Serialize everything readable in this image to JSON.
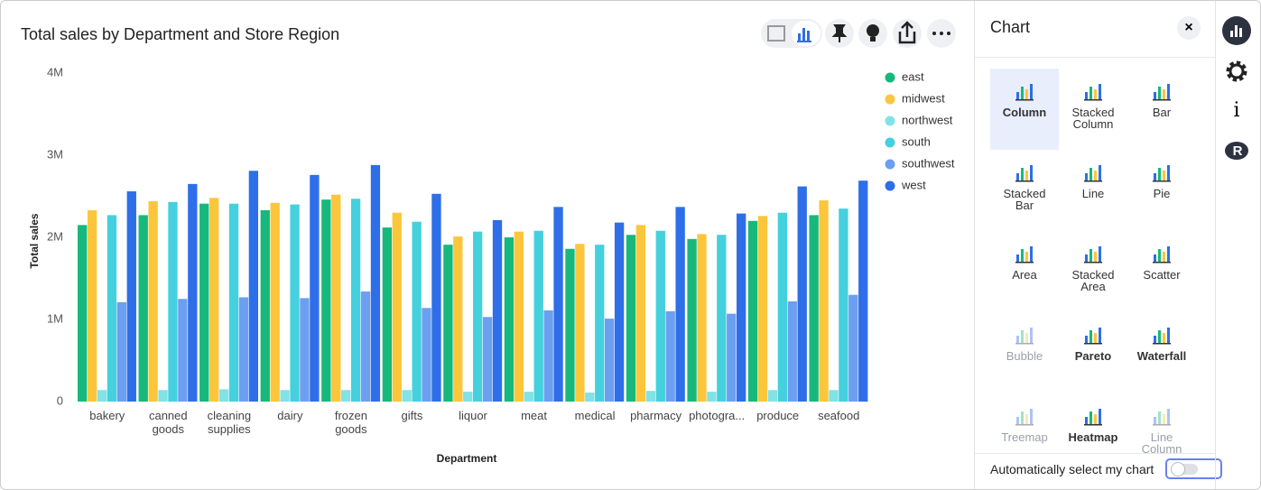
{
  "chart_data": {
    "type": "bar",
    "title": "Total sales by Department and Store Region",
    "x_label": "Department",
    "y_label": "Total sales",
    "categories": [
      "bakery",
      "canned goods",
      "cleaning supplies",
      "dairy",
      "frozen goods",
      "gifts",
      "liquor",
      "meat",
      "medical",
      "pharmacy",
      "photogra...",
      "produce",
      "seafood"
    ],
    "series": [
      {
        "name": "east",
        "color": "#17b87c",
        "values": [
          2150000,
          2270000,
          2410000,
          2330000,
          2460000,
          2120000,
          1910000,
          2000000,
          1860000,
          2030000,
          1980000,
          2200000,
          2270000
        ]
      },
      {
        "name": "midwest",
        "color": "#fcc63c",
        "values": [
          2330000,
          2440000,
          2480000,
          2420000,
          2520000,
          2300000,
          2010000,
          2070000,
          1920000,
          2150000,
          2040000,
          2260000,
          2450000
        ]
      },
      {
        "name": "northwest",
        "color": "#82e2e6",
        "values": [
          140000,
          140000,
          150000,
          140000,
          140000,
          140000,
          120000,
          120000,
          110000,
          130000,
          120000,
          140000,
          140000
        ]
      },
      {
        "name": "south",
        "color": "#45d0dd",
        "values": [
          2270000,
          2430000,
          2410000,
          2400000,
          2470000,
          2190000,
          2070000,
          2080000,
          1910000,
          2080000,
          2030000,
          2300000,
          2350000
        ]
      },
      {
        "name": "southwest",
        "color": "#6d9ff1",
        "values": [
          1210000,
          1250000,
          1270000,
          1260000,
          1340000,
          1140000,
          1030000,
          1110000,
          1010000,
          1100000,
          1070000,
          1220000,
          1300000
        ]
      },
      {
        "name": "west",
        "color": "#2e6ee8",
        "values": [
          2560000,
          2650000,
          2810000,
          2760000,
          2880000,
          2530000,
          2210000,
          2370000,
          2180000,
          2370000,
          2290000,
          2620000,
          2690000
        ]
      }
    ],
    "ylim": [
      0,
      4000000
    ],
    "yticks": [
      {
        "value": 0,
        "label": "0"
      },
      {
        "value": 1000000,
        "label": "1M"
      },
      {
        "value": 2000000,
        "label": "2M"
      },
      {
        "value": 3000000,
        "label": "3M"
      },
      {
        "value": 4000000,
        "label": "4M"
      }
    ],
    "grid": false,
    "legend": "right"
  },
  "panel": {
    "title": "Chart",
    "chart_types": [
      {
        "label": "Column",
        "state": "selected"
      },
      {
        "label": "Stacked Column",
        "state": "available"
      },
      {
        "label": "Bar",
        "state": "available"
      },
      {
        "label": "Stacked Bar",
        "state": "available"
      },
      {
        "label": "Line",
        "state": "available"
      },
      {
        "label": "Pie",
        "state": "available"
      },
      {
        "label": "Area",
        "state": "available"
      },
      {
        "label": "Stacked Area",
        "state": "available"
      },
      {
        "label": "Scatter",
        "state": "available"
      },
      {
        "label": "Bubble",
        "state": "disabled"
      },
      {
        "label": "Pareto",
        "state": "suggested"
      },
      {
        "label": "Waterfall",
        "state": "suggested"
      },
      {
        "label": "Treemap",
        "state": "disabled"
      },
      {
        "label": "Heatmap",
        "state": "suggested"
      },
      {
        "label": "Line Column",
        "state": "disabled"
      }
    ],
    "auto_select_label": "Automatically select my chart"
  }
}
